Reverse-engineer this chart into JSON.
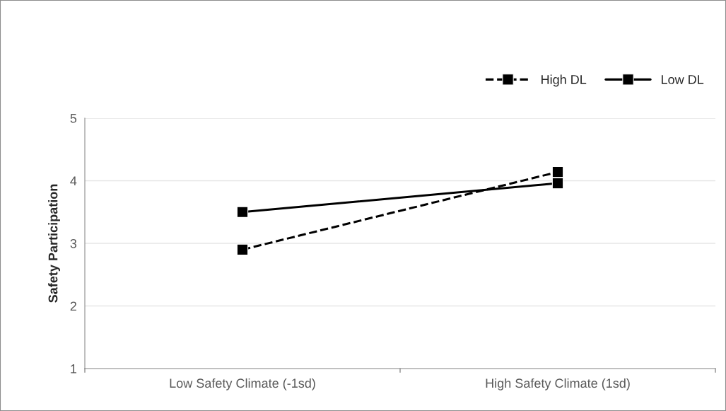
{
  "chart_data": {
    "type": "line",
    "ylabel": "Safety Participation",
    "categories": [
      "Low Safety Climate (-1sd)",
      "High Safety Climate (1sd)"
    ],
    "series": [
      {
        "name": "High DL",
        "color": "#000000",
        "values": [
          2.9,
          4.14
        ],
        "line_style": "dashed"
      },
      {
        "name": "Low DL",
        "color": "#000000",
        "values": [
          3.5,
          3.96
        ],
        "line_style": "solid"
      }
    ],
    "ylim": [
      1,
      5
    ],
    "yticks": [
      1,
      2,
      3,
      4,
      5
    ],
    "grid": "y",
    "legend": "top right",
    "marker": "square"
  }
}
